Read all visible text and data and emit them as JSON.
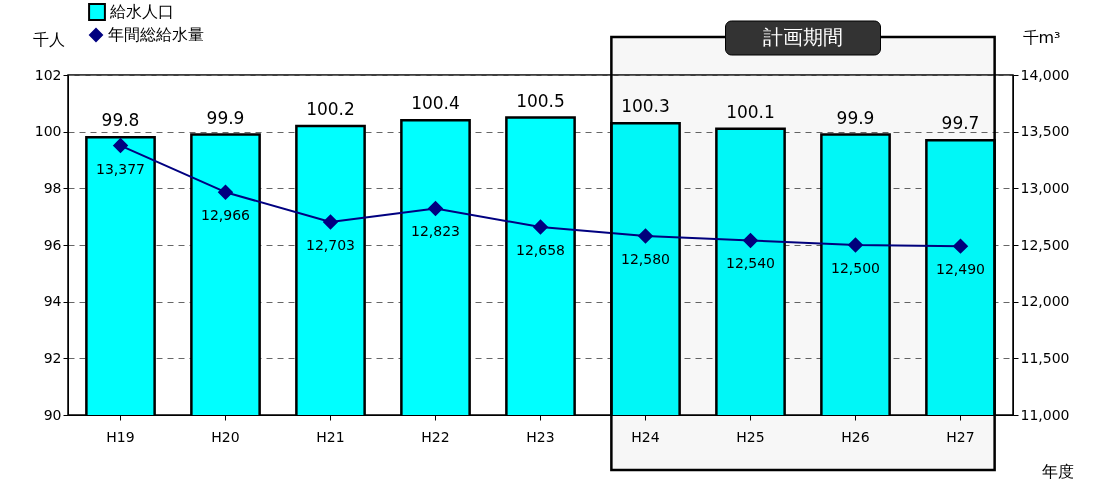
{
  "chart_data": {
    "type": "bar",
    "categories": [
      "H19",
      "H20",
      "H21",
      "H22",
      "H23",
      "H24",
      "H25",
      "H26",
      "H27"
    ],
    "series": [
      {
        "name": "給水人口",
        "color": "#00ffff",
        "values": [
          99.8,
          99.9,
          100.2,
          100.4,
          100.5,
          100.3,
          100.1,
          99.9,
          99.7
        ]
      },
      {
        "name": "年間総給水量",
        "type": "line",
        "axis": "y2",
        "color": "#000080",
        "marker": "diamond",
        "values": [
          13377,
          12966,
          12703,
          12823,
          12658,
          12580,
          12540,
          12500,
          12490
        ],
        "value_labels": [
          "13,377",
          "12,966",
          "12,703",
          "12,823",
          "12,658",
          "12,580",
          "12,540",
          "12,500",
          "12,490"
        ]
      }
    ],
    "ylabel": "千人",
    "y2label": "千m³",
    "xlabel": "年度",
    "ylim": [
      90,
      102
    ],
    "yticks": [
      90,
      92,
      94,
      96,
      98,
      100,
      102
    ],
    "y2lim": [
      11000,
      14000
    ],
    "y2ticks": [
      {
        "value": 11000,
        "label": "11,000"
      },
      {
        "value": 11500,
        "label": "11,500"
      },
      {
        "value": 12000,
        "label": "12,000"
      },
      {
        "value": 12500,
        "label": "12,500"
      },
      {
        "value": 13000,
        "label": "13,000"
      },
      {
        "value": 13500,
        "label": "13,500"
      },
      {
        "value": 14000,
        "label": "14,000"
      }
    ],
    "bands": [
      {
        "axis": "x",
        "from": "H24",
        "to": "H27",
        "label": "計画期間"
      }
    ],
    "grid": "y",
    "legend": "top left",
    "data_labels": true
  }
}
